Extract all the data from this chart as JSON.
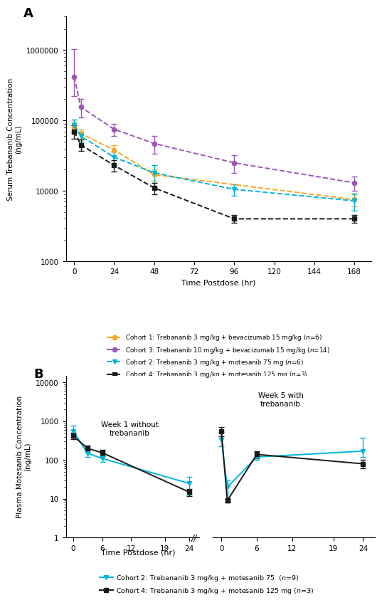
{
  "panel_A": {
    "ylabel": "Serum Trebananib Concentration\n(ng/mL)",
    "xlabel": "Time Postdose (hr)",
    "ylim": [
      1000,
      3000000
    ],
    "xticks": [
      0,
      24,
      48,
      72,
      96,
      120,
      144,
      168
    ],
    "cohort1": {
      "label": "Cohort 1: Trebananib 3 mg/kg + bevacizumab 15 mg/kg (n=6)",
      "color": "#F5A623",
      "marker": "o",
      "linestyle": "--",
      "x": [
        0,
        4,
        24,
        48,
        168
      ],
      "y": [
        80000,
        65000,
        38000,
        17000,
        7500
      ],
      "yerr_low": [
        15000,
        10000,
        7000,
        3000,
        1500
      ],
      "yerr_high": [
        15000,
        10000,
        7000,
        3000,
        1500
      ]
    },
    "cohort3": {
      "label": "Cohort 3: Trebananib 10 mg/kg + bevacizumab 15 mg/kg (n=14)",
      "color": "#9B59B6",
      "marker": "o",
      "linestyle": "--",
      "x": [
        0,
        4,
        24,
        48,
        96,
        168
      ],
      "y": [
        420000,
        155000,
        75000,
        47000,
        25000,
        13000
      ],
      "yerr_low": [
        200000,
        45000,
        15000,
        13000,
        7000,
        3000
      ],
      "yerr_high": [
        600000,
        45000,
        15000,
        13000,
        7000,
        3000
      ]
    },
    "cohort2": {
      "label": "Cohort 2: Trebananib 3 mg/kg + motesanib 75 mg (n=6)",
      "color": "#00B4D8",
      "marker": "v",
      "linestyle": "--",
      "x": [
        0,
        4,
        24,
        48,
        96,
        168
      ],
      "y": [
        85000,
        60000,
        30000,
        18000,
        10500,
        7200
      ],
      "yerr_low": [
        18000,
        10000,
        6000,
        5000,
        2000,
        2000
      ],
      "yerr_high": [
        18000,
        10000,
        6000,
        5000,
        2000,
        2000
      ]
    },
    "cohort4": {
      "label": "Cohort 4: Trebananib 3 mg/kg + motesanib 125 mg (n=3)",
      "color": "#1a1a1a",
      "marker": "s",
      "linestyle": "--",
      "x": [
        0,
        4,
        24,
        48,
        96,
        168
      ],
      "y": [
        70000,
        45000,
        23000,
        11000,
        4000,
        4000
      ],
      "yerr_low": [
        15000,
        8000,
        4000,
        2000,
        500,
        500
      ],
      "yerr_high": [
        15000,
        8000,
        4000,
        2000,
        500,
        500
      ]
    },
    "legend_labels": [
      "Cohort 1: Trebananib 3 mg/kg + bevacizumab 15 mg/kg (n=6)",
      "Cohort 3: Trebananib 10 mg/kg + bevacizumab 15 mg/kg (n=14)",
      "Cohort 2: Trebananib 3 mg/kg + motesanib 75 mg (n=6)",
      "Cohort 4: Trebananib 3 mg/kg + motesanib 125 mg (n=3)"
    ]
  },
  "panel_B": {
    "ylabel": "Plasma Motesanib Concentration\n(ng/mL)",
    "xlabel": "Time Postdose (hr)",
    "ylim": [
      1,
      15000
    ],
    "cohort2_w1": {
      "color": "#00B4D8",
      "marker": "v",
      "x": [
        0,
        3,
        6,
        24
      ],
      "y": [
        560,
        150,
        110,
        25
      ],
      "yerr_low": [
        100,
        30,
        20,
        12
      ],
      "yerr_high": [
        200,
        30,
        20,
        12
      ]
    },
    "cohort4_w1": {
      "color": "#1a1a1a",
      "marker": "s",
      "x": [
        0,
        3,
        6,
        24
      ],
      "y": [
        420,
        200,
        155,
        15
      ],
      "yerr_low": [
        80,
        40,
        30,
        3
      ],
      "yerr_high": [
        80,
        40,
        30,
        3
      ]
    },
    "cohort2_w5": {
      "color": "#00B4D8",
      "marker": "v",
      "x": [
        0,
        1,
        6,
        24
      ],
      "y": [
        330,
        20,
        120,
        170
      ],
      "yerr_low": [
        100,
        10,
        20,
        50
      ],
      "yerr_high": [
        200,
        10,
        20,
        200
      ]
    },
    "cohort4_w5": {
      "color": "#1a1a1a",
      "marker": "s",
      "x": [
        0,
        1,
        6,
        24
      ],
      "y": [
        560,
        9,
        140,
        80
      ],
      "yerr_low": [
        150,
        1,
        30,
        20
      ],
      "yerr_high": [
        150,
        1,
        30,
        20
      ]
    },
    "legend_labels": [
      "Cohort 2: Trebananib 3 mg/kg + motesanib 75  (n=9)",
      "Cohort 4: Trebananib 3 mg/kg + motesanib 125 mg (n=3)"
    ]
  }
}
